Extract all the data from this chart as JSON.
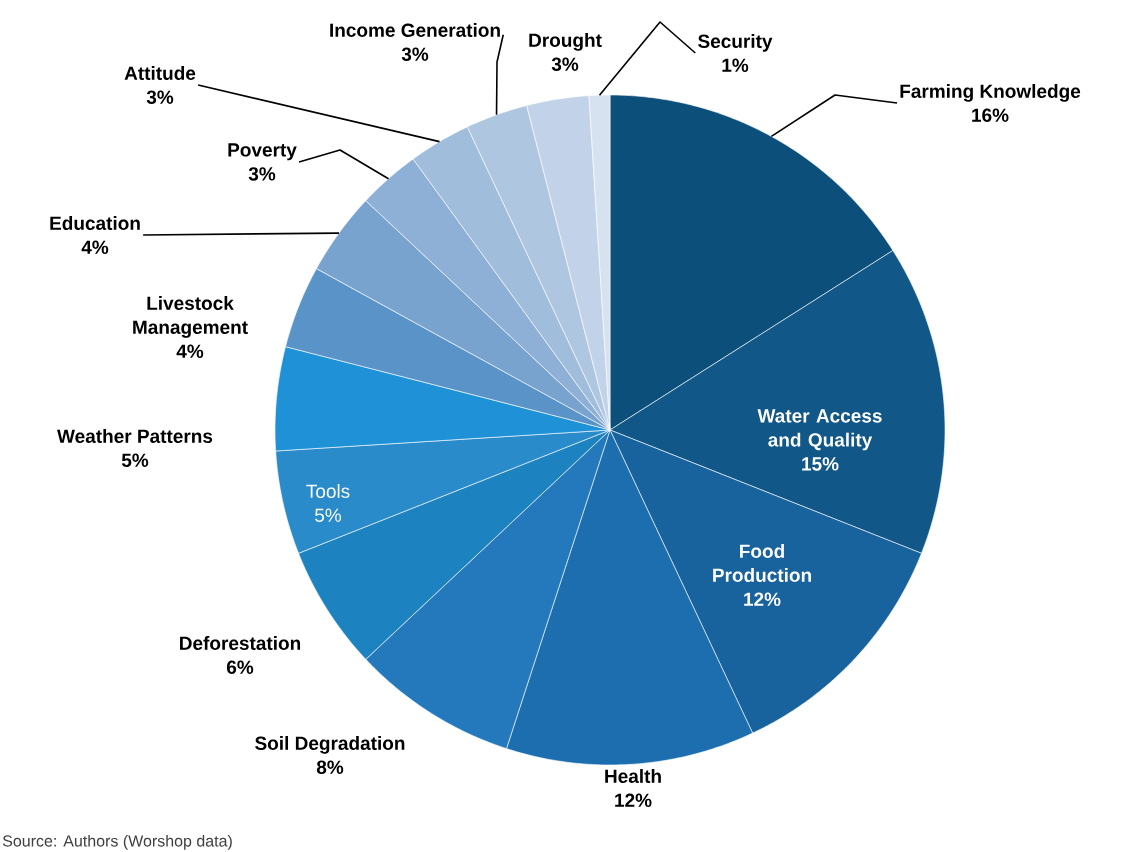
{
  "chart_data": {
    "type": "pie",
    "categories": [
      "Farming Knowledge",
      "Water Access and Quality",
      "Food Production",
      "Health",
      "Soil Degradation",
      "Deforestation",
      "Tools",
      "Weather Patterns",
      "Livestock Management",
      "Education",
      "Poverty",
      "Attitude",
      "Income Generation",
      "Drought",
      "Security"
    ],
    "values": [
      16,
      15,
      12,
      12,
      8,
      6,
      5,
      5,
      4,
      4,
      3,
      3,
      3,
      3,
      1
    ],
    "value_labels": [
      "16%",
      "15%",
      "12%",
      "12%",
      "8%",
      "6%",
      "5%",
      "5%",
      "4%",
      "4%",
      "3%",
      "3%",
      "3%",
      "3%",
      "1%"
    ],
    "colors": [
      "#0b4f7a",
      "#115889",
      "#18639e",
      "#1c6eaf",
      "#2479bc",
      "#1c82c0",
      "#2a8bca",
      "#1f91d6",
      "#5a93c8",
      "#79a3cf",
      "#8eb0d6",
      "#a1bddc",
      "#afc6e1",
      "#c2d3e9",
      "#d6e2f0"
    ],
    "annotations": [
      "Source: Authors (Worshop data)"
    ]
  }
}
